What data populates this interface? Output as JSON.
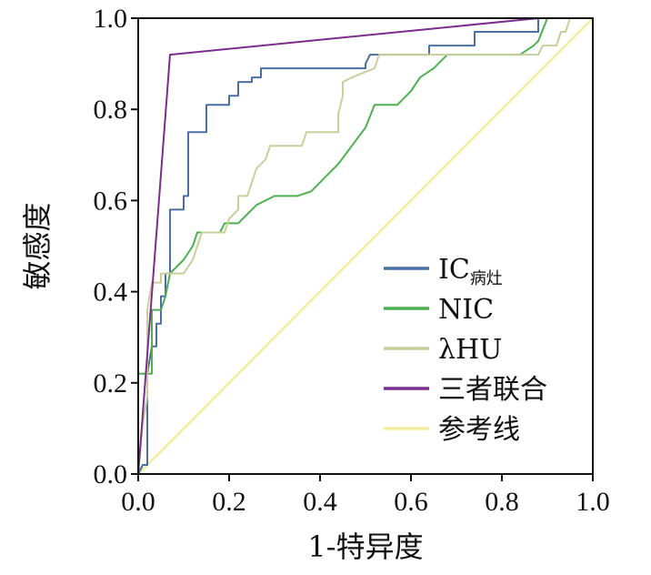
{
  "chart_data": {
    "type": "line",
    "xlabel": "1-特异度",
    "ylabel": "敏感度",
    "xlim": [
      0,
      1
    ],
    "ylim": [
      0,
      1
    ],
    "x_ticks": [
      "0.0",
      "0.2",
      "0.4",
      "0.6",
      "0.8",
      "1.0"
    ],
    "y_ticks": [
      "0.0",
      "0.2",
      "0.4",
      "0.6",
      "0.8",
      "1.0"
    ],
    "grid": false,
    "legend": "bottom-right",
    "series": [
      {
        "name": "IC",
        "name_sub": "病灶",
        "color": "#4a6fa5",
        "points": [
          [
            0,
            0
          ],
          [
            0.01,
            0.02
          ],
          [
            0.02,
            0.02
          ],
          [
            0.02,
            0.11
          ],
          [
            0.02,
            0.22
          ],
          [
            0.03,
            0.28
          ],
          [
            0.04,
            0.28
          ],
          [
            0.04,
            0.33
          ],
          [
            0.05,
            0.33
          ],
          [
            0.05,
            0.39
          ],
          [
            0.06,
            0.39
          ],
          [
            0.06,
            0.44
          ],
          [
            0.07,
            0.44
          ],
          [
            0.07,
            0.58
          ],
          [
            0.1,
            0.58
          ],
          [
            0.1,
            0.61
          ],
          [
            0.11,
            0.61
          ],
          [
            0.11,
            0.75
          ],
          [
            0.15,
            0.75
          ],
          [
            0.15,
            0.81
          ],
          [
            0.2,
            0.81
          ],
          [
            0.2,
            0.83
          ],
          [
            0.22,
            0.83
          ],
          [
            0.22,
            0.86
          ],
          [
            0.25,
            0.86
          ],
          [
            0.25,
            0.87
          ],
          [
            0.27,
            0.87
          ],
          [
            0.27,
            0.89
          ],
          [
            0.28,
            0.89
          ],
          [
            0.5,
            0.89
          ],
          [
            0.5,
            0.9
          ],
          [
            0.51,
            0.92
          ],
          [
            0.64,
            0.92
          ],
          [
            0.64,
            0.94
          ],
          [
            0.74,
            0.94
          ],
          [
            0.74,
            0.97
          ],
          [
            0.88,
            0.97
          ],
          [
            0.88,
            1
          ],
          [
            1,
            1
          ]
        ]
      },
      {
        "name": "NIC",
        "color": "#4caf50",
        "points": [
          [
            0,
            0
          ],
          [
            0,
            0.22
          ],
          [
            0.03,
            0.22
          ],
          [
            0.03,
            0.36
          ],
          [
            0.05,
            0.36
          ],
          [
            0.06,
            0.39
          ],
          [
            0.07,
            0.44
          ],
          [
            0.1,
            0.47
          ],
          [
            0.12,
            0.5
          ],
          [
            0.13,
            0.53
          ],
          [
            0.18,
            0.53
          ],
          [
            0.19,
            0.55
          ],
          [
            0.22,
            0.55
          ],
          [
            0.24,
            0.57
          ],
          [
            0.26,
            0.59
          ],
          [
            0.28,
            0.6
          ],
          [
            0.3,
            0.61
          ],
          [
            0.35,
            0.61
          ],
          [
            0.38,
            0.62
          ],
          [
            0.4,
            0.64
          ],
          [
            0.42,
            0.66
          ],
          [
            0.44,
            0.68
          ],
          [
            0.47,
            0.72
          ],
          [
            0.5,
            0.76
          ],
          [
            0.52,
            0.81
          ],
          [
            0.57,
            0.81
          ],
          [
            0.6,
            0.84
          ],
          [
            0.62,
            0.87
          ],
          [
            0.65,
            0.89
          ],
          [
            0.67,
            0.91
          ],
          [
            0.68,
            0.92
          ],
          [
            0.84,
            0.92
          ],
          [
            0.87,
            0.94
          ],
          [
            0.88,
            0.95
          ],
          [
            0.9,
            1
          ],
          [
            1,
            1
          ]
        ]
      },
      {
        "name": "λHU",
        "color": "#c9cf9a",
        "points": [
          [
            0,
            0
          ],
          [
            0.01,
            0.11
          ],
          [
            0.02,
            0.17
          ],
          [
            0.02,
            0.36
          ],
          [
            0.03,
            0.42
          ],
          [
            0.05,
            0.42
          ],
          [
            0.05,
            0.44
          ],
          [
            0.08,
            0.44
          ],
          [
            0.1,
            0.44
          ],
          [
            0.12,
            0.47
          ],
          [
            0.13,
            0.5
          ],
          [
            0.14,
            0.53
          ],
          [
            0.19,
            0.53
          ],
          [
            0.2,
            0.56
          ],
          [
            0.22,
            0.58
          ],
          [
            0.22,
            0.61
          ],
          [
            0.24,
            0.61
          ],
          [
            0.25,
            0.64
          ],
          [
            0.26,
            0.67
          ],
          [
            0.28,
            0.69
          ],
          [
            0.29,
            0.72
          ],
          [
            0.36,
            0.72
          ],
          [
            0.37,
            0.75
          ],
          [
            0.44,
            0.75
          ],
          [
            0.44,
            0.79
          ],
          [
            0.45,
            0.83
          ],
          [
            0.45,
            0.86
          ],
          [
            0.47,
            0.87
          ],
          [
            0.52,
            0.89
          ],
          [
            0.53,
            0.92
          ],
          [
            0.88,
            0.92
          ],
          [
            0.89,
            0.94
          ],
          [
            0.92,
            0.94
          ],
          [
            0.93,
            0.97
          ],
          [
            0.94,
            0.97
          ],
          [
            0.95,
            1
          ],
          [
            1,
            1
          ]
        ]
      },
      {
        "name": "三者联合",
        "color": "#7b2d8e",
        "points": [
          [
            0,
            0
          ],
          [
            0.07,
            0.92
          ],
          [
            0.88,
            1
          ],
          [
            1,
            1
          ]
        ]
      },
      {
        "name": "参考线",
        "color": "#f2ee9e",
        "points": [
          [
            0,
            0
          ],
          [
            1,
            1
          ]
        ]
      }
    ]
  }
}
